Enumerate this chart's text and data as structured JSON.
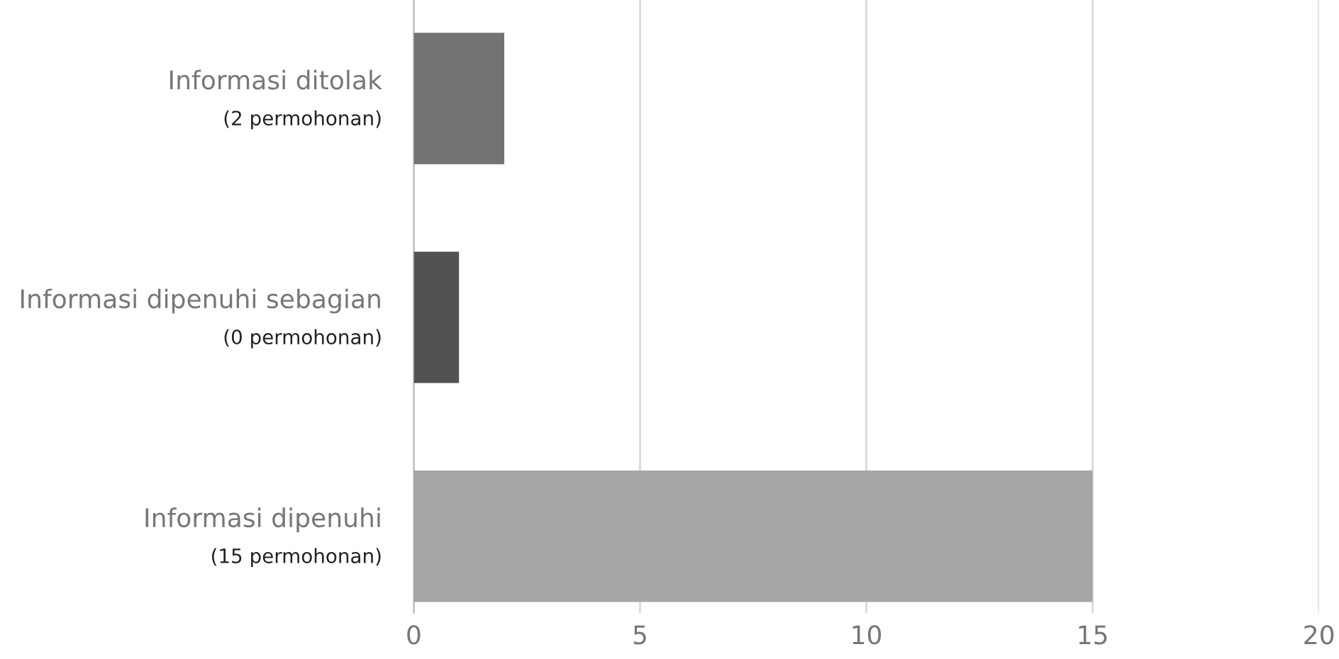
{
  "chart_data": {
    "type": "bar",
    "orientation": "horizontal",
    "categories": [
      "Informasi ditolak\n(2 permohonan)",
      "Informasi dipenuhi sebagian\n(0 permohonan)",
      "Informasi dipenuhi\n(15 permohonan)"
    ],
    "values": [
      2,
      1,
      15
    ],
    "colors": [
      "#737373",
      "#525252",
      "#a6a6a6"
    ],
    "xlim": [
      0,
      20
    ],
    "xticks": [
      0,
      5,
      10,
      15,
      20
    ],
    "grid": "x"
  }
}
